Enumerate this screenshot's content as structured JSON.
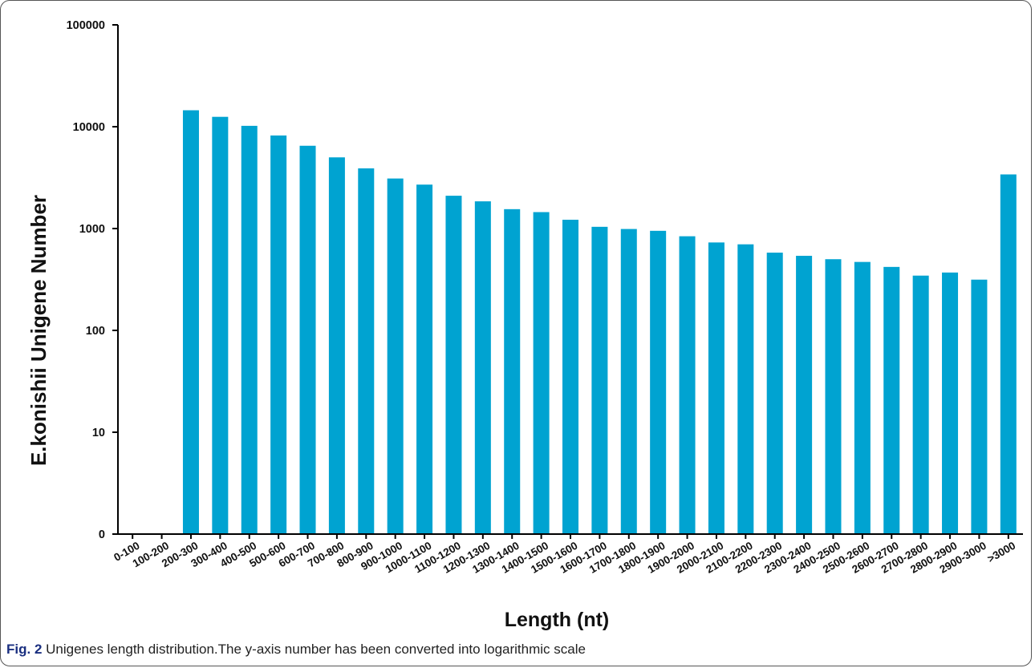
{
  "chart_data": {
    "type": "bar",
    "xlabel": "Length (nt)",
    "ylabel": "E.konishii Unigene Number",
    "yscale": "log",
    "ylim": [
      1,
      100000
    ],
    "yticks": [
      1,
      10,
      100,
      1000,
      10000,
      100000
    ],
    "ytick_labels": [
      "0",
      "10",
      "100",
      "1000",
      "10000",
      "100000"
    ],
    "bar_color": "#00a3d1",
    "categories": [
      "0-100",
      "100-200",
      "200-300",
      "300-400",
      "400-500",
      "500-600",
      "600-700",
      "700-800",
      "800-900",
      "900-1000",
      "1000-1100",
      "1100-1200",
      "1200-1300",
      "1300-1400",
      "1400-1500",
      "1500-1600",
      "1600-1700",
      "1700-1800",
      "1800-1900",
      "1900-2000",
      "2000-2100",
      "2100-2200",
      "2200-2300",
      "2300-2400",
      "2400-2500",
      "2500-2600",
      "2600-2700",
      "2700-2800",
      "2800-2900",
      "2900-3000",
      ">3000"
    ],
    "values": [
      0,
      0,
      14500,
      12500,
      10200,
      8200,
      6500,
      5000,
      3900,
      3100,
      2700,
      2100,
      1850,
      1550,
      1450,
      1220,
      1040,
      990,
      950,
      840,
      730,
      700,
      580,
      540,
      500,
      470,
      420,
      345,
      370,
      315,
      3400
    ]
  },
  "caption": {
    "label": "Fig. 2",
    "text": " Unigenes length distribution.The y-axis number has been converted into logarithmic scale"
  }
}
